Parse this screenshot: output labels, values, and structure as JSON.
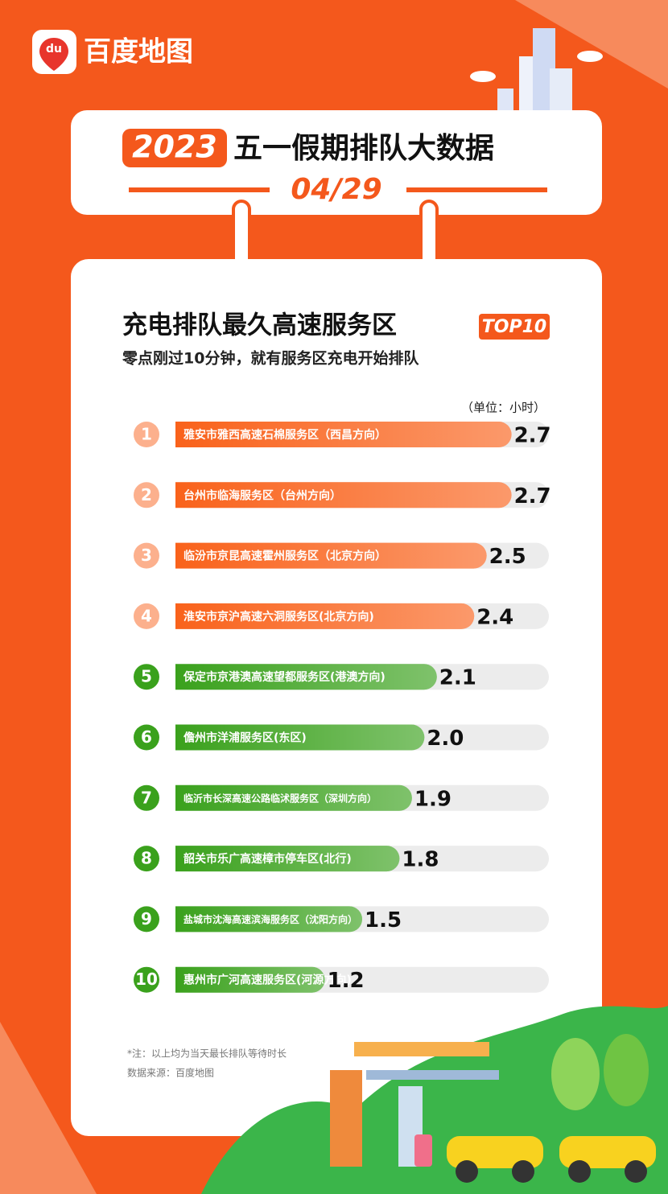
{
  "header": {
    "logo_icon": "du",
    "logo_text": "百度地图",
    "year": "2023",
    "title": "五一假期排队大数据",
    "date": "04/29"
  },
  "chart_data": {
    "type": "bar",
    "orientation": "horizontal",
    "title": "充电排队最久高速服务区",
    "badge": "TOP10",
    "subtitle": "零点刚过10分钟，就有服务区充电开始排队",
    "unit": "（单位：小时）",
    "ranks": [
      "1",
      "2",
      "3",
      "4",
      "5",
      "6",
      "7",
      "8",
      "9",
      "10"
    ],
    "categories": [
      "雅安市雅西高速石棉服务区（西昌方向）",
      "台州市临海服务区（台州方向）",
      "临汾市京昆高速霍州服务区（北京方向）",
      "淮安市京沪高速六洞服务区(北京方向)",
      "保定市京港澳高速望都服务区(港澳方向)",
      "儋州市洋浦服务区(东区)",
      "临沂市长深高速公路临沭服务区（深圳方向）",
      "韶关市乐广高速樟市停车区(北行)",
      "盐城市沈海高速滨海服务区（沈阳方向）",
      "惠州市广河高速服务区(河源方向)"
    ],
    "values": [
      2.7,
      2.7,
      2.5,
      2.4,
      2.1,
      2.0,
      1.9,
      1.8,
      1.5,
      1.2
    ],
    "value_labels": [
      "2.7",
      "2.7",
      "2.5",
      "2.4",
      "2.1",
      "2.0",
      "1.9",
      "1.8",
      "1.5",
      "1.2"
    ],
    "colors": [
      "#f9621b",
      "#f9621b",
      "#f9621b",
      "#f9621b",
      "#3aa11c",
      "#3aa11c",
      "#3aa11c",
      "#3aa11c",
      "#3aa11c",
      "#3aa11c"
    ],
    "xlim": [
      0,
      3
    ]
  },
  "footnotes": [
    "*注：以上均为当天最长排队等待时长",
    "数据来源：百度地图"
  ]
}
